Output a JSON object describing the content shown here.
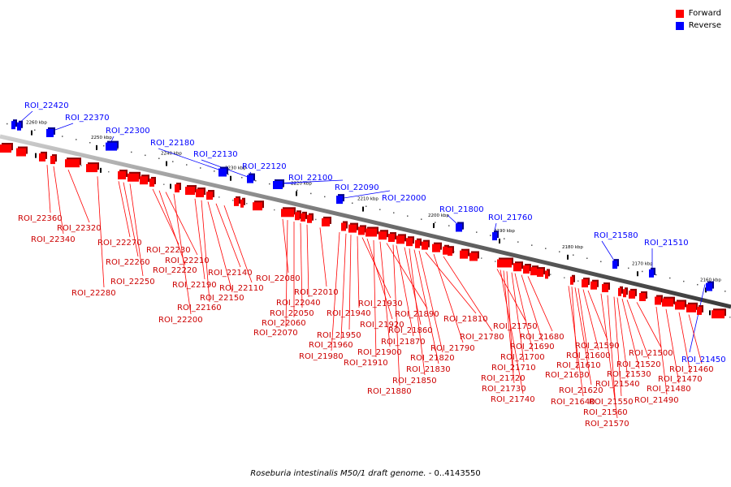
{
  "legend": {
    "forward_label": "Forward",
    "reverse_label": "Reverse",
    "forward_color": "#ff0000",
    "reverse_color": "#0000ff"
  },
  "caption": {
    "organism": "Roseburia intestinalis M50/1 draft genome.",
    "range": " - 0..4143550"
  },
  "scale_ticks": [
    "2260 kbp",
    "2250 kbp",
    "2240 kbp",
    "2230 kbp",
    "2220 kbp",
    "2210 kbp",
    "2200 kbp",
    "2190 kbp",
    "2180 kbp",
    "2170 kbp",
    "2160 kbp"
  ],
  "regions": {
    "reverse": [
      "ROI_22420",
      "ROI_22370",
      "ROI_22300",
      "ROI_22180",
      "ROI_22130",
      "ROI_22120",
      "ROI_22100",
      "ROI_22090",
      "ROI_22000",
      "ROI_21800",
      "ROI_21760",
      "ROI_21580",
      "ROI_21510",
      "ROI_21450"
    ],
    "forward": [
      "ROI_22360",
      "ROI_22340",
      "ROI_22320",
      "ROI_22280",
      "ROI_22270",
      "ROI_22260",
      "ROI_22250",
      "ROI_22230",
      "ROI_22220",
      "ROI_22210",
      "ROI_22200",
      "ROI_22190",
      "ROI_22160",
      "ROI_22150",
      "ROI_22140",
      "ROI_22110",
      "ROI_22080",
      "ROI_22070",
      "ROI_22060",
      "ROI_22050",
      "ROI_22040",
      "ROI_22010",
      "ROI_21980",
      "ROI_21960",
      "ROI_21950",
      "ROI_21940",
      "ROI_21930",
      "ROI_21920",
      "ROI_21910",
      "ROI_21900",
      "ROI_21890",
      "ROI_21880",
      "ROI_21870",
      "ROI_21860",
      "ROI_21850",
      "ROI_21830",
      "ROI_21820",
      "ROI_21810",
      "ROI_21790",
      "ROI_21780",
      "ROI_21750",
      "ROI_21740",
      "ROI_21730",
      "ROI_21720",
      "ROI_21710",
      "ROI_21700",
      "ROI_21690",
      "ROI_21680",
      "ROI_21640",
      "ROI_21630",
      "ROI_21620",
      "ROI_21610",
      "ROI_21600",
      "ROI_21590",
      "ROI_21570",
      "ROI_21560",
      "ROI_21550",
      "ROI_21540",
      "ROI_21530",
      "ROI_21520",
      "ROI_21500",
      "ROI_21490",
      "ROI_21480",
      "ROI_21470",
      "ROI_21460"
    ]
  }
}
